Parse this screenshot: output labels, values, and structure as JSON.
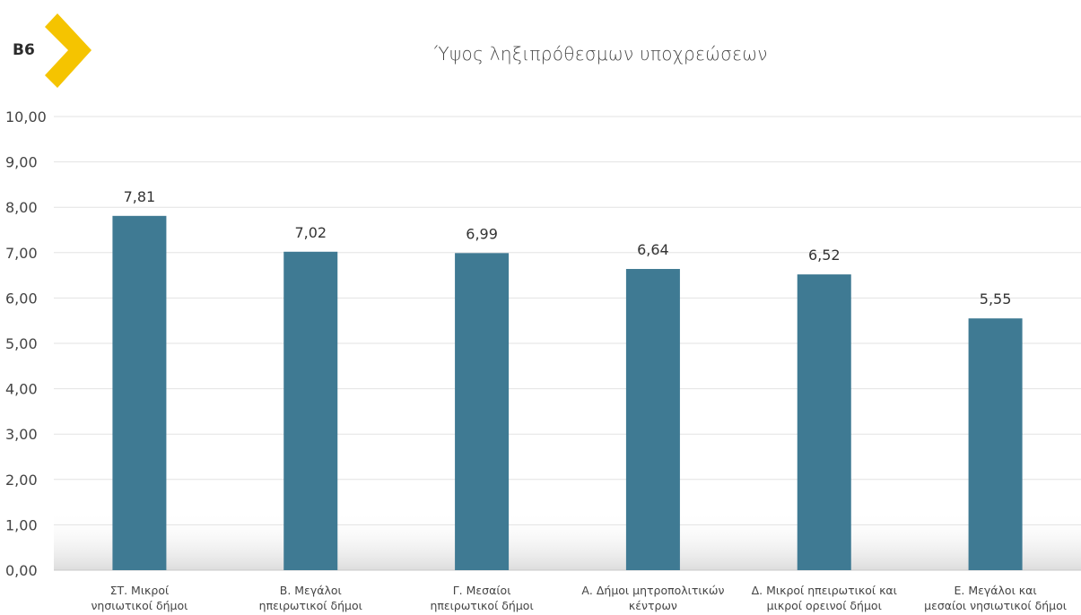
{
  "badge": {
    "label": "Β6",
    "accent_color": "#F5C400"
  },
  "chart_data": {
    "type": "bar",
    "title": "Ύψος ληξιπρόθεσμων υποχρεώσεων",
    "xlabel": "",
    "ylabel": "",
    "ylim": [
      0,
      10
    ],
    "y_ticks": [
      "0,00",
      "1,00",
      "2,00",
      "3,00",
      "4,00",
      "5,00",
      "6,00",
      "7,00",
      "8,00",
      "9,00",
      "10,00"
    ],
    "y_tick_values": [
      0,
      1,
      2,
      3,
      4,
      5,
      6,
      7,
      8,
      9,
      10
    ],
    "grid": true,
    "bar_color": "#3F7A93",
    "categories": [
      [
        "ΣΤ. Μικροί",
        "νησιωτικοί δήμοι"
      ],
      [
        "Β. Μεγάλοι",
        "ηπειρωτικοί δήμοι"
      ],
      [
        "Γ. Μεσαίοι",
        "ηπειρωτικοί δήμοι"
      ],
      [
        "Α. Δήμοι μητροπολιτικών",
        "κέντρων"
      ],
      [
        "Δ. Μικροί ηπειρωτικοί και",
        "μικροί ορεινοί δήμοι"
      ],
      [
        "Ε. Μεγάλοι και",
        "μεσαίοι νησιωτικοί δήμοι"
      ]
    ],
    "values": [
      7.81,
      7.02,
      6.99,
      6.64,
      6.52,
      5.55
    ],
    "value_labels": [
      "7,81",
      "7,02",
      "6,99",
      "6,64",
      "6,52",
      "5,55"
    ]
  }
}
